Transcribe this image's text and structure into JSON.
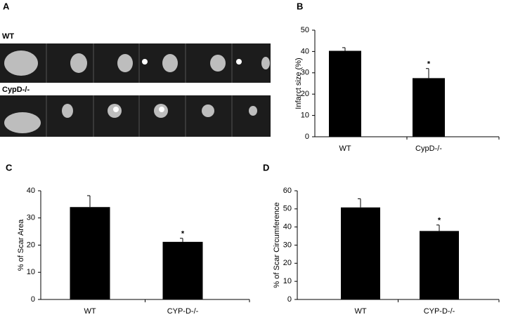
{
  "panel_a": {
    "label": "A",
    "rows": [
      "WT",
      "CypD-/-"
    ]
  },
  "chart_data": [
    {
      "type": "bar",
      "panel_label": "B",
      "y_label": "Infarct size (%)",
      "categories": [
        "WT",
        "CypD-/-"
      ],
      "values": [
        40.3,
        27.5
      ],
      "errors": [
        1.5,
        4.5
      ],
      "significance": [
        null,
        "*"
      ],
      "color": "#000000",
      "ylim": [
        0,
        50
      ],
      "yticks": [
        0,
        10,
        20,
        30,
        40,
        50
      ]
    },
    {
      "type": "bar",
      "panel_label": "C",
      "y_label": "% of Scar Area",
      "categories": [
        "WT",
        "CYP-D-/-"
      ],
      "values": [
        34,
        21.2
      ],
      "errors": [
        4.2,
        1.3
      ],
      "significance": [
        null,
        "*"
      ],
      "color": "#000000",
      "ylim": [
        0,
        40
      ],
      "yticks": [
        0,
        10,
        20,
        30,
        40
      ]
    },
    {
      "type": "bar",
      "panel_label": "D",
      "y_label": "% of Scar Circumference",
      "categories": [
        "WT",
        "CYP-D-/-"
      ],
      "values": [
        50.8,
        37.8
      ],
      "errors": [
        4.8,
        3.3
      ],
      "significance": [
        null,
        "*"
      ],
      "color": "#000000",
      "ylim": [
        0,
        60
      ],
      "yticks": [
        0,
        10,
        20,
        30,
        40,
        50,
        60
      ]
    }
  ]
}
